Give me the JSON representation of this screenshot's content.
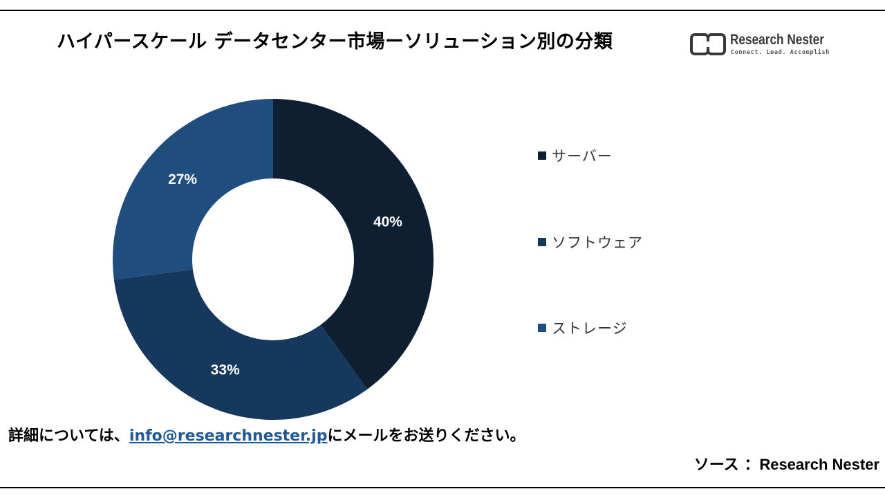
{
  "title": "ハイパースケール データセンター市場ーソリューション別の分類",
  "logo": {
    "name": "Research Nester",
    "tagline": "Connect. Lead. Accomplish"
  },
  "chart_data": {
    "type": "pie",
    "categories": [
      "サーバー",
      "ソフトウェア",
      "ストレージ"
    ],
    "values": [
      40,
      33,
      27
    ],
    "labels": [
      "40%",
      "33%",
      "27%"
    ],
    "colors": [
      "#0d1f30",
      "#15385c",
      "#1e4d7e"
    ],
    "legend_position": "right"
  },
  "footer": {
    "prefix": "詳細については、",
    "email": "info@researchnester.jp",
    "suffix": "にメールをお送りください。"
  },
  "source": {
    "label": "ソース ：",
    "name": "Research Nester"
  }
}
